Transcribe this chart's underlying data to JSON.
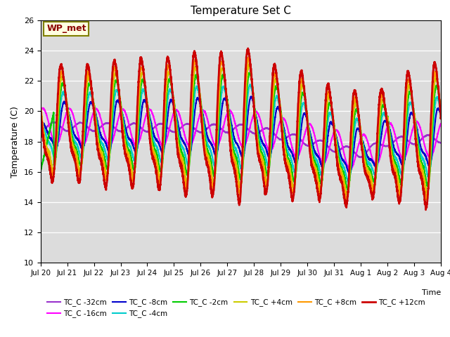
{
  "title": "Temperature Set C",
  "xlabel": "Time",
  "ylabel": "Temperature (C)",
  "ylim": [
    10,
    26
  ],
  "xlim": [
    0,
    360
  ],
  "bg_color": "#dcdcdc",
  "plot_bg": "#dcdcdc",
  "wp_met_label": "WP_met",
  "xtick_labels": [
    "Jul 20",
    "Jul 21",
    "Jul 22",
    "Jul 23",
    "Jul 24",
    "Jul 25",
    "Jul 26",
    "Jul 27",
    "Jul 28",
    "Jul 29",
    "Jul 30",
    "Jul 31",
    "Aug 1",
    "Aug 2",
    "Aug 3",
    "Aug 4"
  ],
  "xtick_positions": [
    0,
    24,
    48,
    72,
    96,
    120,
    144,
    168,
    192,
    216,
    240,
    264,
    288,
    312,
    336,
    360
  ],
  "series": [
    {
      "label": "TC_C -32cm",
      "color": "#9933cc",
      "lw": 1.5
    },
    {
      "label": "TC_C -16cm",
      "color": "#ff00ff",
      "lw": 1.5
    },
    {
      "label": "TC_C -8cm",
      "color": "#0000cc",
      "lw": 1.5
    },
    {
      "label": "TC_C -4cm",
      "color": "#00cccc",
      "lw": 1.5
    },
    {
      "label": "TC_C -2cm",
      "color": "#00cc00",
      "lw": 1.5
    },
    {
      "label": "TC_C +4cm",
      "color": "#cccc00",
      "lw": 1.5
    },
    {
      "label": "TC_C +8cm",
      "color": "#ff9900",
      "lw": 1.5
    },
    {
      "label": "TC_C +12cm",
      "color": "#cc0000",
      "lw": 2.0
    }
  ]
}
